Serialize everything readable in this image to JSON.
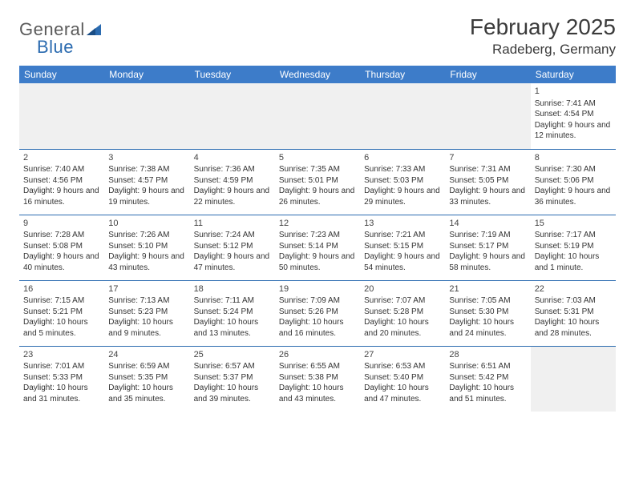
{
  "logo": {
    "word1": "General",
    "word2": "Blue"
  },
  "title": "February 2025",
  "location": "Radeberg, Germany",
  "header_bg": "#3d7cc9",
  "header_fg": "#ffffff",
  "border_color": "#2b6bb0",
  "empty_bg": "#f0f0f0",
  "text_color": "#333333",
  "font_family": "Arial, Helvetica, sans-serif",
  "daynum_fontsize": 11,
  "cell_fontsize": 10,
  "title_fontsize": 28,
  "location_fontsize": 17,
  "weekdays": [
    "Sunday",
    "Monday",
    "Tuesday",
    "Wednesday",
    "Thursday",
    "Friday",
    "Saturday"
  ],
  "days": {
    "1": {
      "sunrise": "7:41 AM",
      "sunset": "4:54 PM",
      "daylight": "9 hours and 12 minutes."
    },
    "2": {
      "sunrise": "7:40 AM",
      "sunset": "4:56 PM",
      "daylight": "9 hours and 16 minutes."
    },
    "3": {
      "sunrise": "7:38 AM",
      "sunset": "4:57 PM",
      "daylight": "9 hours and 19 minutes."
    },
    "4": {
      "sunrise": "7:36 AM",
      "sunset": "4:59 PM",
      "daylight": "9 hours and 22 minutes."
    },
    "5": {
      "sunrise": "7:35 AM",
      "sunset": "5:01 PM",
      "daylight": "9 hours and 26 minutes."
    },
    "6": {
      "sunrise": "7:33 AM",
      "sunset": "5:03 PM",
      "daylight": "9 hours and 29 minutes."
    },
    "7": {
      "sunrise": "7:31 AM",
      "sunset": "5:05 PM",
      "daylight": "9 hours and 33 minutes."
    },
    "8": {
      "sunrise": "7:30 AM",
      "sunset": "5:06 PM",
      "daylight": "9 hours and 36 minutes."
    },
    "9": {
      "sunrise": "7:28 AM",
      "sunset": "5:08 PM",
      "daylight": "9 hours and 40 minutes."
    },
    "10": {
      "sunrise": "7:26 AM",
      "sunset": "5:10 PM",
      "daylight": "9 hours and 43 minutes."
    },
    "11": {
      "sunrise": "7:24 AM",
      "sunset": "5:12 PM",
      "daylight": "9 hours and 47 minutes."
    },
    "12": {
      "sunrise": "7:23 AM",
      "sunset": "5:14 PM",
      "daylight": "9 hours and 50 minutes."
    },
    "13": {
      "sunrise": "7:21 AM",
      "sunset": "5:15 PM",
      "daylight": "9 hours and 54 minutes."
    },
    "14": {
      "sunrise": "7:19 AM",
      "sunset": "5:17 PM",
      "daylight": "9 hours and 58 minutes."
    },
    "15": {
      "sunrise": "7:17 AM",
      "sunset": "5:19 PM",
      "daylight": "10 hours and 1 minute."
    },
    "16": {
      "sunrise": "7:15 AM",
      "sunset": "5:21 PM",
      "daylight": "10 hours and 5 minutes."
    },
    "17": {
      "sunrise": "7:13 AM",
      "sunset": "5:23 PM",
      "daylight": "10 hours and 9 minutes."
    },
    "18": {
      "sunrise": "7:11 AM",
      "sunset": "5:24 PM",
      "daylight": "10 hours and 13 minutes."
    },
    "19": {
      "sunrise": "7:09 AM",
      "sunset": "5:26 PM",
      "daylight": "10 hours and 16 minutes."
    },
    "20": {
      "sunrise": "7:07 AM",
      "sunset": "5:28 PM",
      "daylight": "10 hours and 20 minutes."
    },
    "21": {
      "sunrise": "7:05 AM",
      "sunset": "5:30 PM",
      "daylight": "10 hours and 24 minutes."
    },
    "22": {
      "sunrise": "7:03 AM",
      "sunset": "5:31 PM",
      "daylight": "10 hours and 28 minutes."
    },
    "23": {
      "sunrise": "7:01 AM",
      "sunset": "5:33 PM",
      "daylight": "10 hours and 31 minutes."
    },
    "24": {
      "sunrise": "6:59 AM",
      "sunset": "5:35 PM",
      "daylight": "10 hours and 35 minutes."
    },
    "25": {
      "sunrise": "6:57 AM",
      "sunset": "5:37 PM",
      "daylight": "10 hours and 39 minutes."
    },
    "26": {
      "sunrise": "6:55 AM",
      "sunset": "5:38 PM",
      "daylight": "10 hours and 43 minutes."
    },
    "27": {
      "sunrise": "6:53 AM",
      "sunset": "5:40 PM",
      "daylight": "10 hours and 47 minutes."
    },
    "28": {
      "sunrise": "6:51 AM",
      "sunset": "5:42 PM",
      "daylight": "10 hours and 51 minutes."
    }
  },
  "grid": [
    [
      null,
      null,
      null,
      null,
      null,
      null,
      "1"
    ],
    [
      "2",
      "3",
      "4",
      "5",
      "6",
      "7",
      "8"
    ],
    [
      "9",
      "10",
      "11",
      "12",
      "13",
      "14",
      "15"
    ],
    [
      "16",
      "17",
      "18",
      "19",
      "20",
      "21",
      "22"
    ],
    [
      "23",
      "24",
      "25",
      "26",
      "27",
      "28",
      null
    ]
  ],
  "labels": {
    "sunrise": "Sunrise:",
    "sunset": "Sunset:",
    "daylight": "Daylight:"
  }
}
